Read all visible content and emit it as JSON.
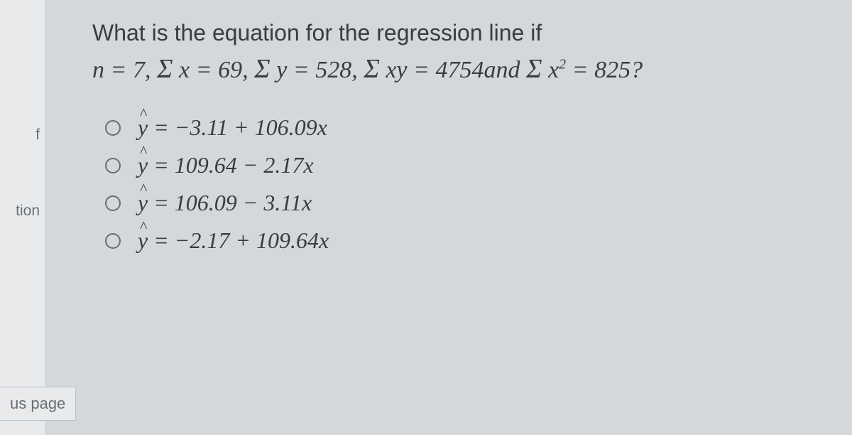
{
  "sidebar": {
    "items": [
      {
        "label": "f"
      },
      {
        "label": "tion"
      }
    ]
  },
  "previousPage": {
    "label": "us page"
  },
  "question": {
    "line1": "What is the equation for the regression line if",
    "line2_html": "n = 7, Σ x = 69, Σ y = 528, Σ xy = 4754 and Σ x² = 825?"
  },
  "options": [
    {
      "text": "ŷ = −3.11 + 106.09x"
    },
    {
      "text": "ŷ = 109.64 − 2.17x"
    },
    {
      "text": "ŷ = 106.09 − 3.11x"
    },
    {
      "text": "ŷ = −2.17 + 109.64x"
    }
  ],
  "colors": {
    "background": "#d5d8db",
    "sidebar_bg": "#e8eaec",
    "text": "#3a3d40",
    "sidebar_text": "#6b6e71",
    "border": "#c0c3c6"
  },
  "typography": {
    "question_fontsize": 32,
    "option_fontsize": 32,
    "sidebar_fontsize": 21
  }
}
